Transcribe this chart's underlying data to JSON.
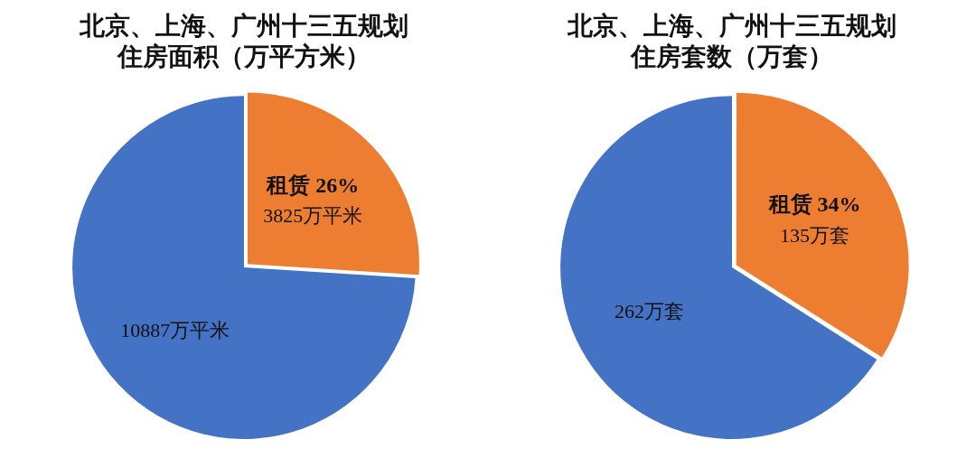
{
  "chart_data": [
    {
      "type": "pie",
      "title": "北京、上海、广州十三五规划住房面积（万平方米）",
      "categories": [
        "租赁 26%",
        null
      ],
      "values": [
        3825,
        10887
      ],
      "colors": [
        "#ed7d31",
        "#4472c4"
      ],
      "value_labels": [
        "3825万平米",
        "10887万平米"
      ],
      "legend": false
    },
    {
      "type": "pie",
      "title": "北京、上海、广州十三五规划住房套数（万套）",
      "categories": [
        "租赁 34%",
        null
      ],
      "values": [
        135,
        262
      ],
      "colors": [
        "#ed7d31",
        "#4472c4"
      ],
      "value_labels": [
        "135万套",
        "262万套"
      ],
      "legend": false
    }
  ]
}
